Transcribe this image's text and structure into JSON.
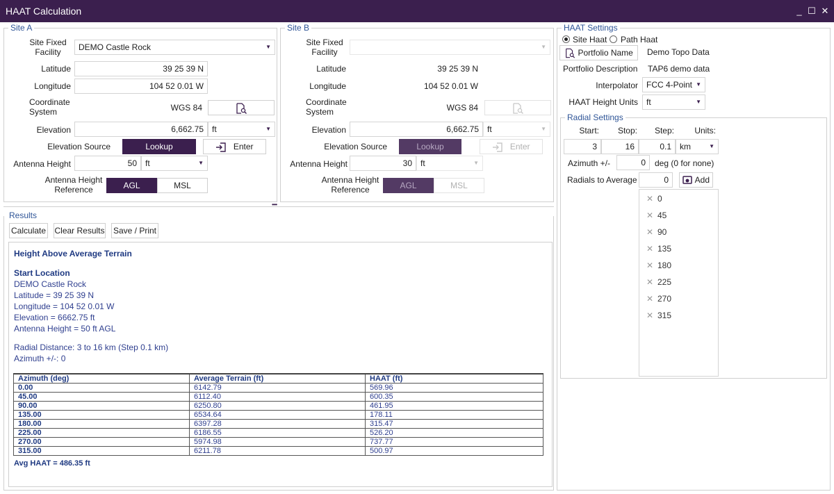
{
  "window": {
    "title": "HAAT Calculation",
    "minimize": "_",
    "maximize": "☐",
    "close": "✕"
  },
  "colors": {
    "accent": "#3b1f4e",
    "link_text": "#2f3f8f",
    "group_title": "#2f5597"
  },
  "site_a": {
    "legend": "Site A",
    "facility_label": "Site Fixed\nFacility",
    "facility_value": "DEMO Castle Rock",
    "latitude_label": "Latitude",
    "latitude": "39 25 39 N",
    "longitude_label": "Longitude",
    "longitude": "104 52 0.01 W",
    "coordinate_label": "Coordinate\nSystem",
    "coordinate_value": "WGS 84",
    "elevation_label": "Elevation",
    "elevation": "6,662.75",
    "elevation_units": "ft",
    "elevation_source_label": "Elevation Source",
    "lookup": "Lookup",
    "enter": "Enter",
    "antenna_height_label": "Antenna Height",
    "antenna_height": "50",
    "antenna_units": "ft",
    "reference_label": "Antenna Height\nReference",
    "agl": "AGL",
    "msl": "MSL"
  },
  "site_b": {
    "legend": "Site B",
    "facility_label": "Site Fixed\nFacility",
    "facility_value": "",
    "latitude_label": "Latitude",
    "latitude": "39 25 39 N",
    "longitude_label": "Longitude",
    "longitude": "104 52 0.01 W",
    "coordinate_label": "Coordinate\nSystem",
    "coordinate_value": "WGS 84",
    "elevation_label": "Elevation",
    "elevation": "6,662.75",
    "elevation_units": "ft",
    "elevation_source_label": "Elevation Source",
    "lookup": "Lookup",
    "enter": "Enter",
    "antenna_height_label": "Antenna Height",
    "antenna_height": "30",
    "antenna_units": "ft",
    "reference_label": "Antenna Height\nReference",
    "agl": "AGL",
    "msl": "MSL"
  },
  "haat_settings": {
    "legend": "HAAT Settings",
    "site_haat": "Site Haat",
    "path_haat": "Path Haat",
    "portfolio_name_btn": "Portfolio Name",
    "portfolio_name": "Demo Topo Data",
    "portfolio_desc_label": "Portfolio Description",
    "portfolio_desc": "TAP6 demo data",
    "interpolator_label": "Interpolator",
    "interpolator": "FCC 4-Point",
    "height_units_label": "HAAT Height Units",
    "height_units": "ft"
  },
  "radial_settings": {
    "legend": "Radial Settings",
    "start_label": "Start:",
    "stop_label": "Stop:",
    "step_label": "Step:",
    "units_label": "Units:",
    "start": "3",
    "stop": "16",
    "step": "0.1",
    "units": "km",
    "azimuth_label": "Azimuth +/-",
    "azimuth": "0",
    "azimuth_suffix": "deg (0 for none)",
    "radials_label": "Radials to Average",
    "radials_input": "0",
    "add": "Add",
    "radials": [
      "0",
      "45",
      "90",
      "135",
      "180",
      "225",
      "270",
      "315"
    ]
  },
  "results": {
    "legend": "Results",
    "calculate": "Calculate",
    "clear": "Clear Results",
    "save": "Save / Print",
    "heading": "Height Above Average Terrain",
    "start_location": "Start Location",
    "lines": [
      "DEMO Castle Rock",
      "Latitude = 39 25 39 N",
      "Longitude = 104 52 0.01 W",
      "Elevation = 6662.75 ft",
      "Antenna Height = 50 ft AGL"
    ],
    "radial_distance": "Radial Distance: 3 to 16 km (Step 0.1 km)",
    "azimuth_line": "Azimuth +/-: 0",
    "columns": [
      "Azimuth (deg)",
      "Average Terrain (ft)",
      "HAAT (ft)"
    ],
    "rows": [
      [
        "0.00",
        "6142.79",
        "569.96"
      ],
      [
        "45.00",
        "6112.40",
        "600.35"
      ],
      [
        "90.00",
        "6250.80",
        "461.95"
      ],
      [
        "135.00",
        "6534.64",
        "178.11"
      ],
      [
        "180.00",
        "6397.28",
        "315.47"
      ],
      [
        "225.00",
        "6186.55",
        "526.20"
      ],
      [
        "270.00",
        "5974.98",
        "737.77"
      ],
      [
        "315.00",
        "6211.78",
        "500.97"
      ]
    ],
    "avg": "Avg HAAT = 486.35 ft",
    "splitter": "••••"
  }
}
